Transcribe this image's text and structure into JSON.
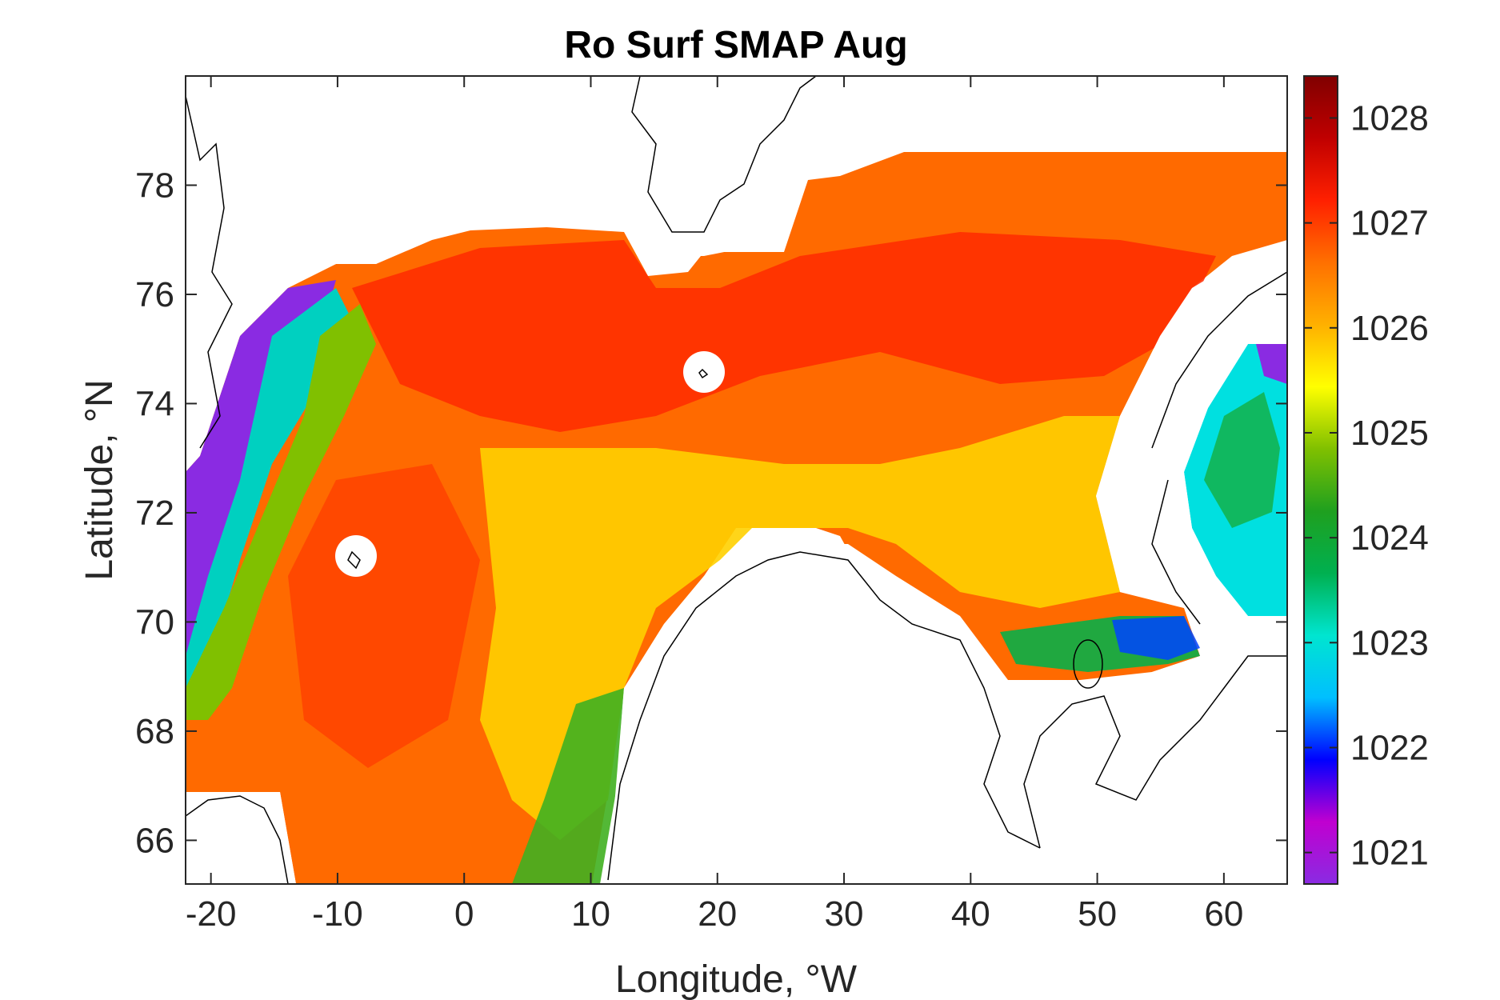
{
  "chart_data": {
    "type": "heatmap",
    "title": "Ro Surf SMAP Aug",
    "xlabel": "Longitude, °W",
    "ylabel": "Latitude, °N",
    "xlim": [
      -22,
      65
    ],
    "ylim": [
      65.2,
      80
    ],
    "x_ticks": [
      -20,
      -10,
      0,
      10,
      20,
      30,
      40,
      50,
      60
    ],
    "y_ticks": [
      66,
      68,
      70,
      72,
      74,
      76,
      78
    ],
    "x_tick_labels": [
      "-20",
      "-10",
      "0",
      "10",
      "20",
      "30",
      "40",
      "50",
      "60"
    ],
    "y_tick_labels": [
      "66",
      "68",
      "70",
      "72",
      "74",
      "76",
      "78"
    ],
    "colorbar": {
      "range": [
        1020.7,
        1028.4
      ],
      "ticks": [
        1021,
        1022,
        1023,
        1024,
        1025,
        1026,
        1027,
        1028
      ],
      "tick_labels": [
        "1021",
        "1022",
        "1023",
        "1024",
        "1025",
        "1026",
        "1027",
        "1028"
      ],
      "colormap": [
        "#8a2be2",
        "#c000d0",
        "#0000ff",
        "#00bfff",
        "#00e5d0",
        "#00b050",
        "#1fa01f",
        "#80c000",
        "#ffff00",
        "#ffb000",
        "#ff7000",
        "#ff2000",
        "#c00000",
        "#800000"
      ]
    },
    "grid": false,
    "legend": "none",
    "regions_approx": [
      {
        "lon": -8,
        "lat": 74,
        "value": 1027.0
      },
      {
        "lon": -17,
        "lat": 73,
        "value": 1021.5
      },
      {
        "lon": -14,
        "lat": 72,
        "value": 1024.5
      },
      {
        "lon": 0,
        "lat": 70,
        "value": 1027.0
      },
      {
        "lon": 8,
        "lat": 68,
        "value": 1026.0
      },
      {
        "lon": 10,
        "lat": 66,
        "value": 1025.0
      },
      {
        "lon": 20,
        "lat": 72,
        "value": 1026.3
      },
      {
        "lon": 35,
        "lat": 75,
        "value": 1027.3
      },
      {
        "lon": 45,
        "lat": 70,
        "value": 1025.3
      },
      {
        "lon": 56,
        "lat": 69.8,
        "value": 1023.0
      },
      {
        "lon": 62,
        "lat": 72,
        "value": 1024.2
      },
      {
        "lon": 55,
        "lat": 77,
        "value": 1027.2
      }
    ]
  }
}
